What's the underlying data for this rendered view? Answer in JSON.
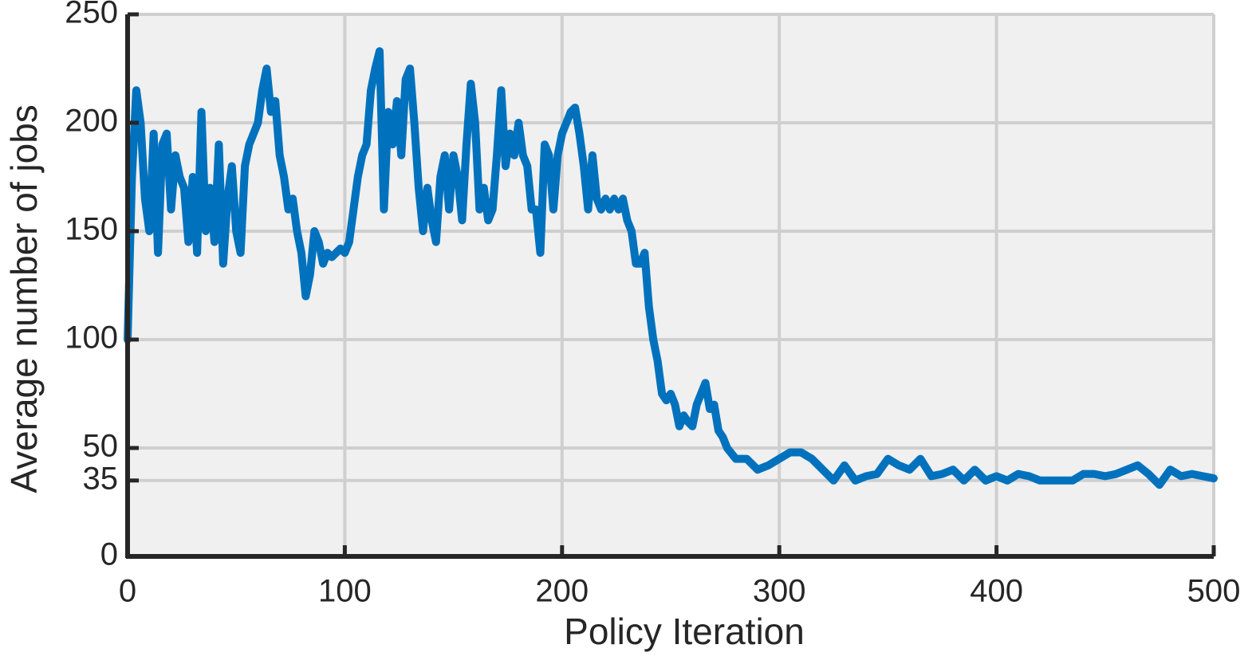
{
  "chart_data": {
    "type": "line",
    "xlabel": "Policy Iteration",
    "ylabel": "Average number of jobs",
    "x": [
      0,
      2,
      4,
      6,
      8,
      10,
      12,
      14,
      16,
      18,
      20,
      22,
      24,
      26,
      28,
      30,
      32,
      34,
      36,
      38,
      40,
      42,
      44,
      46,
      48,
      50,
      52,
      54,
      56,
      58,
      60,
      62,
      64,
      66,
      68,
      70,
      72,
      74,
      76,
      78,
      80,
      82,
      84,
      86,
      88,
      90,
      92,
      94,
      96,
      98,
      100,
      102,
      104,
      106,
      108,
      110,
      112,
      114,
      116,
      118,
      120,
      122,
      124,
      126,
      128,
      130,
      132,
      134,
      136,
      138,
      140,
      142,
      144,
      146,
      148,
      150,
      152,
      154,
      156,
      158,
      160,
      162,
      164,
      166,
      168,
      170,
      172,
      174,
      176,
      178,
      180,
      182,
      184,
      186,
      188,
      190,
      192,
      194,
      196,
      198,
      200,
      202,
      204,
      206,
      208,
      210,
      212,
      214,
      216,
      218,
      220,
      222,
      224,
      226,
      228,
      230,
      232,
      234,
      236,
      238,
      240,
      242,
      244,
      246,
      248,
      250,
      252,
      254,
      256,
      258,
      260,
      262,
      264,
      266,
      268,
      270,
      272,
      274,
      276,
      280,
      285,
      290,
      295,
      300,
      305,
      310,
      315,
      320,
      325,
      330,
      335,
      340,
      345,
      350,
      355,
      360,
      365,
      370,
      375,
      380,
      385,
      390,
      395,
      400,
      405,
      410,
      415,
      420,
      425,
      430,
      435,
      440,
      445,
      450,
      455,
      460,
      465,
      470,
      475,
      480,
      485,
      490,
      495,
      500
    ],
    "series": [
      {
        "name": "Average number of jobs",
        "color": "#0072bd",
        "values": [
          100,
          175,
          215,
          200,
          165,
          150,
          195,
          140,
          190,
          195,
          160,
          185,
          175,
          170,
          145,
          175,
          140,
          205,
          150,
          170,
          145,
          190,
          135,
          165,
          180,
          150,
          140,
          180,
          190,
          195,
          200,
          215,
          225,
          205,
          210,
          185,
          175,
          160,
          165,
          150,
          140,
          120,
          130,
          150,
          145,
          135,
          140,
          138,
          140,
          142,
          140,
          145,
          160,
          175,
          185,
          190,
          215,
          225,
          233,
          160,
          205,
          190,
          210,
          185,
          220,
          225,
          200,
          170,
          150,
          170,
          155,
          145,
          175,
          185,
          160,
          185,
          175,
          155,
          190,
          218,
          200,
          160,
          170,
          155,
          160,
          185,
          215,
          180,
          195,
          185,
          200,
          185,
          180,
          160,
          160,
          140,
          190,
          185,
          160,
          185,
          195,
          200,
          205,
          207,
          195,
          180,
          160,
          185,
          165,
          160,
          165,
          160,
          165,
          160,
          165,
          155,
          150,
          135,
          135,
          140,
          115,
          100,
          90,
          75,
          72,
          75,
          70,
          60,
          65,
          62,
          60,
          70,
          75,
          80,
          68,
          70,
          58,
          55,
          50,
          45,
          45,
          40,
          42,
          45,
          48,
          48,
          45,
          40,
          35,
          42,
          35,
          37,
          38,
          45,
          42,
          40,
          45,
          37,
          38,
          40,
          35,
          40,
          35,
          37,
          35,
          38,
          37,
          35,
          35,
          35,
          35,
          38,
          38,
          37,
          38,
          40,
          42,
          38,
          33,
          40,
          37,
          38,
          37,
          36
        ]
      }
    ],
    "xlim": [
      0,
      500
    ],
    "xticks": [
      0,
      100,
      200,
      300,
      400,
      500
    ],
    "ylim": [
      0,
      250
    ],
    "yticks": [
      0,
      35,
      50,
      100,
      150,
      200,
      250
    ],
    "grid": true
  }
}
